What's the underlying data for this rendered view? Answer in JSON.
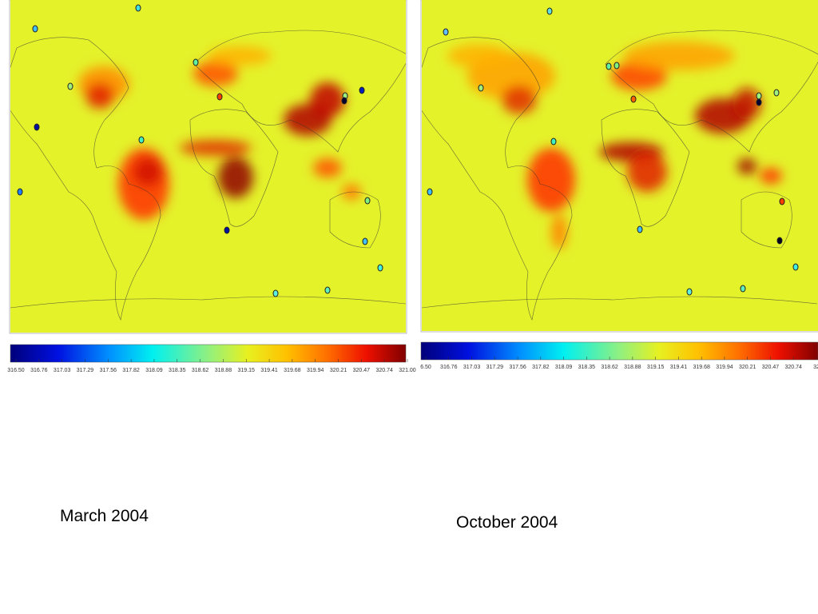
{
  "maps": [
    {
      "caption": "March 2004",
      "colorbar_labels": [
        "316.50",
        "316.76",
        "317.03",
        "317.29",
        "317.56",
        "317.82",
        "318.09",
        "318.35",
        "318.62",
        "318.88",
        "319.15",
        "319.41",
        "319.68",
        "319.94",
        "320.21",
        "320.47",
        "320.74",
        "321.00"
      ]
    },
    {
      "caption": "October 2004",
      "colorbar_labels": [
        "6.50",
        "316.76",
        "317.03",
        "317.29",
        "317.56",
        "317.82",
        "318.09",
        "318.35",
        "318.62",
        "318.88",
        "319.15",
        "319.41",
        "319.68",
        "319.94",
        "320.21",
        "320.47",
        "320.74",
        "32"
      ]
    }
  ]
}
